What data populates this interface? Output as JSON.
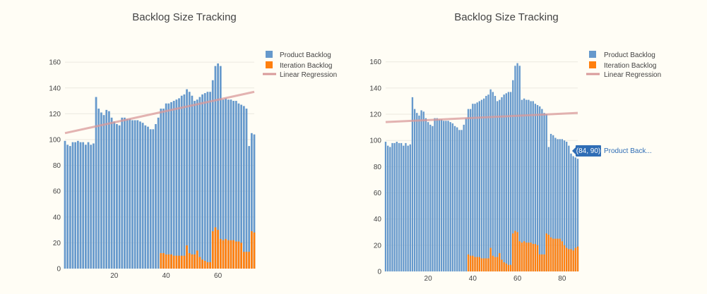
{
  "colors": {
    "product_backlog": "#6699cc",
    "iteration_backlog": "#ff7f0e",
    "regression": "#d99a9a",
    "grid": "#ece9e0",
    "hover_bg": "#2f6db5"
  },
  "chart_data": [
    {
      "type": "bar",
      "title": "Backlog Size Tracking",
      "xlabel": "",
      "ylabel": "",
      "xlim": [
        1,
        74
      ],
      "ylim": [
        0,
        165
      ],
      "xticks": [
        20,
        40,
        60
      ],
      "yticks": [
        0,
        20,
        40,
        60,
        80,
        100,
        120,
        140,
        160
      ],
      "grid": true,
      "legend_position": "top-right",
      "series": [
        {
          "name": "Product Backlog",
          "type": "bar",
          "x_start": 1,
          "values": [
            99,
            96,
            95,
            98,
            98,
            99,
            98,
            98,
            96,
            98,
            96,
            97,
            133,
            124,
            121,
            119,
            123,
            122,
            117,
            114,
            112,
            111,
            117,
            117,
            116,
            116,
            115,
            115,
            115,
            114,
            113,
            111,
            110,
            108,
            108,
            112,
            117,
            124,
            124,
            128,
            128,
            129,
            130,
            131,
            132,
            134,
            135,
            139,
            137,
            134,
            130,
            131,
            133,
            135,
            136,
            137,
            137,
            146,
            157,
            159,
            157,
            131,
            132,
            131,
            131,
            130,
            130,
            128,
            127,
            126,
            124,
            95,
            105,
            104
          ]
        },
        {
          "name": "Iteration Backlog",
          "type": "bar",
          "x_start": 38,
          "values": [
            12,
            12,
            11,
            11,
            11,
            10,
            10,
            10,
            10,
            10,
            18,
            12,
            11,
            11,
            14,
            9,
            7,
            6,
            5,
            5,
            29,
            32,
            30,
            23,
            22,
            23,
            22,
            22,
            22,
            21,
            21,
            20,
            13,
            13,
            13,
            29,
            28
          ]
        },
        {
          "name": "Linear Regression",
          "type": "line",
          "x": [
            1,
            74
          ],
          "y": [
            105,
            137
          ]
        }
      ]
    },
    {
      "type": "bar",
      "title": "Backlog Size Tracking",
      "xlabel": "",
      "ylabel": "",
      "xlim": [
        1,
        87
      ],
      "ylim": [
        0,
        162
      ],
      "xticks": [
        20,
        40,
        60,
        80
      ],
      "yticks": [
        0,
        20,
        40,
        60,
        80,
        100,
        120,
        140,
        160
      ],
      "grid": true,
      "legend_position": "top-right",
      "hover": {
        "text": "(84, 90)",
        "label": "Product Back...",
        "x": 84,
        "y": 90
      },
      "series": [
        {
          "name": "Product Backlog",
          "type": "bar",
          "x_start": 1,
          "values": [
            99,
            96,
            95,
            98,
            98,
            99,
            98,
            98,
            96,
            98,
            96,
            97,
            133,
            124,
            121,
            119,
            123,
            122,
            117,
            114,
            112,
            111,
            117,
            117,
            116,
            116,
            115,
            115,
            115,
            114,
            113,
            111,
            110,
            108,
            108,
            112,
            117,
            124,
            124,
            128,
            128,
            129,
            130,
            131,
            132,
            134,
            135,
            139,
            137,
            134,
            130,
            131,
            133,
            135,
            136,
            137,
            137,
            146,
            157,
            159,
            157,
            131,
            132,
            131,
            131,
            130,
            130,
            128,
            127,
            126,
            124,
            121,
            120,
            95,
            105,
            104,
            102,
            101,
            101,
            101,
            100,
            99,
            96,
            90,
            88,
            87,
            86
          ]
        },
        {
          "name": "Iteration Backlog",
          "type": "bar",
          "x_start": 38,
          "values": [
            13,
            12,
            12,
            11,
            11,
            11,
            10,
            10,
            10,
            10,
            18,
            12,
            11,
            11,
            14,
            9,
            7,
            6,
            5,
            5,
            29,
            31,
            30,
            23,
            22,
            23,
            22,
            22,
            22,
            21,
            21,
            20,
            13,
            13,
            13,
            29,
            28,
            26,
            25,
            25,
            25,
            25,
            23,
            20,
            18,
            17,
            17,
            16,
            18,
            19
          ]
        },
        {
          "name": "Linear Regression",
          "type": "line",
          "x": [
            1,
            87
          ],
          "y": [
            114,
            121
          ]
        }
      ]
    }
  ]
}
